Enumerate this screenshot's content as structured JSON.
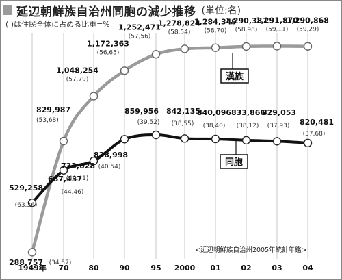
{
  "header": {
    "title": "延辺朝鮮族自治州同胞の減少推移",
    "unit": "(単位:名)",
    "subtitle": "(  )は住民全体に占める比重=%"
  },
  "source": "<延辺朝鮮族自治州2005年統計年鑑>",
  "colors": {
    "han_line": "#9a9a9a",
    "korean_line": "#111111",
    "marker_fill": "#ffffff",
    "grid": "#bbbbbb",
    "header_square": "#9a9a9a"
  },
  "chart_data": {
    "type": "line",
    "categories": [
      "1949年",
      "70",
      "80",
      "90",
      "95",
      "2000",
      "01",
      "02",
      "03",
      "04"
    ],
    "series": [
      {
        "name": "漢族",
        "values": [
          288757,
          829987,
          1048254,
          1172363,
          1252471,
          1278824,
          1284349,
          1290387,
          1291870,
          1290868
        ],
        "value_labels": [
          "288,757",
          "829,987",
          "1,048,254",
          "1,172,363",
          "1,252,471",
          "1,278,824",
          "1,284,349",
          "1,290,387",
          "1,291,870",
          "1,290,868"
        ],
        "shares": [
          "(34,57)",
          "(53,68)",
          "(57,79)",
          "(56,65)",
          "(57,56)",
          "(58,54)",
          "(58,70)",
          "(58,98)",
          "(59,11)",
          "(59,29)"
        ]
      },
      {
        "name": "同胞",
        "values": [
          529258,
          687437,
          733028,
          838998,
          859956,
          842135,
          840096,
          833866,
          829053,
          820481
        ],
        "value_labels": [
          "529,258",
          "687,437",
          "733,028",
          "838,998",
          "859,956",
          "842,135",
          "840,096",
          "833,866",
          "829,053",
          "820,481"
        ],
        "shares": [
          "(63,36)",
          "(44,46)",
          "(40,41)",
          "(40,54)",
          "(39,52)",
          "(38,55)",
          "(38,40)",
          "(38,12)",
          "(37,93)",
          "(37,68)"
        ]
      }
    ],
    "ylim": [
      250000,
      1350000
    ],
    "grid": "vertical"
  }
}
